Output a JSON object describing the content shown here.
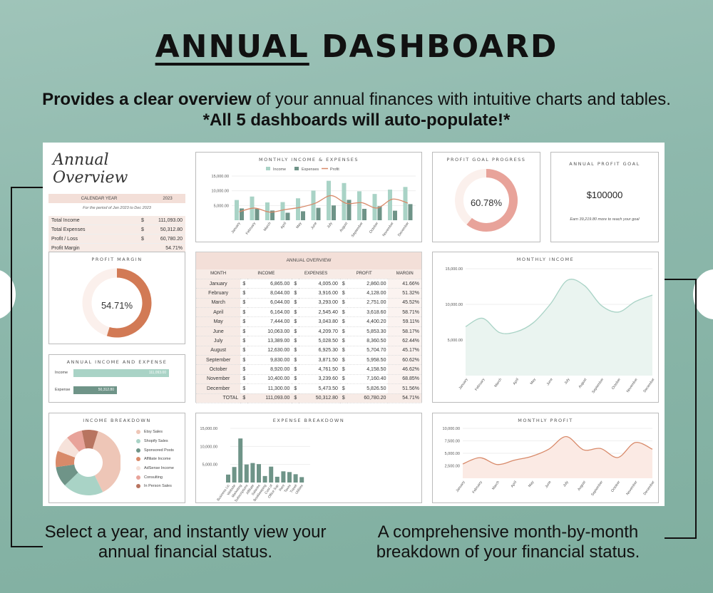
{
  "headline": {
    "part1": "ANNUAL",
    "part2": " DASHBOARD"
  },
  "subtitle": {
    "bold1": "Provides a clear overview",
    "text1": " of your annual finances with intuitive charts and tables. ",
    "bold2": "*All 5 dashboards will auto-populate!*"
  },
  "callouts": {
    "left": "Select a year, and instantly view your annual financial status.",
    "right": "A comprehensive month-by-month breakdown of your financial status."
  },
  "overview": {
    "script_title": "Annual Overview",
    "calendar_label": "CALENDAR YEAR",
    "year": "2023",
    "period": "For the period of Jan 2023 to Dec 2023",
    "rows": [
      {
        "label": "Total Income",
        "cur": "$",
        "value": "111,093.00"
      },
      {
        "label": "Total Expenses",
        "cur": "$",
        "value": "50,312.80"
      },
      {
        "label": "Profit / Loss",
        "cur": "$",
        "value": "60,780.20"
      },
      {
        "label": "Profit Margin",
        "cur": "",
        "value": "54.71%"
      }
    ]
  },
  "monthly_ie": {
    "title": "MONTHLY INCOME & EXPENSES",
    "legend": [
      "Income",
      "Expenses",
      "Profit"
    ],
    "yticks": [
      "15,000.00",
      "10,000.00",
      "5,000.00"
    ]
  },
  "profit_goal": {
    "title": "PROFIT GOAL PROGRESS",
    "value": "60.78%",
    "pct": 60.78
  },
  "annual_goal": {
    "title": "ANNUAL PROFIT GOAL",
    "value": "$100000",
    "note": "Earn 39,219.80 more to reach your goal"
  },
  "profit_margin": {
    "title": "PROFIT MARGIN",
    "value": "54.71%",
    "pct": 54.71
  },
  "income_expense": {
    "title": "ANNUAL INCOME AND EXPENSE",
    "income_label": "Income",
    "income_value": "111,093.00",
    "expense_label": "Expense",
    "expense_value": "50,312.80"
  },
  "annual_table": {
    "title": "ANNUAL OVERVIEW",
    "headers": [
      "MONTH",
      "INCOME",
      "EXPENSES",
      "PROFIT",
      "MARGIN"
    ],
    "rows": [
      [
        "January",
        "6,865.00",
        "4,005.00",
        "2,860.00",
        "41.66%"
      ],
      [
        "February",
        "8,044.00",
        "3,916.00",
        "4,128.00",
        "51.32%"
      ],
      [
        "March",
        "6,044.00",
        "3,293.00",
        "2,751.00",
        "45.52%"
      ],
      [
        "April",
        "6,164.00",
        "2,545.40",
        "3,618.60",
        "58.71%"
      ],
      [
        "May",
        "7,444.00",
        "3,043.80",
        "4,400.20",
        "59.11%"
      ],
      [
        "June",
        "10,063.00",
        "4,209.70",
        "5,853.30",
        "58.17%"
      ],
      [
        "July",
        "13,389.00",
        "5,028.50",
        "8,360.50",
        "62.44%"
      ],
      [
        "August",
        "12,630.00",
        "6,925.30",
        "5,704.70",
        "45.17%"
      ],
      [
        "September",
        "9,830.00",
        "3,871.50",
        "5,958.50",
        "60.62%"
      ],
      [
        "October",
        "8,920.00",
        "4,761.50",
        "4,158.50",
        "46.62%"
      ],
      [
        "November",
        "10,400.00",
        "3,239.60",
        "7,160.40",
        "68.85%"
      ],
      [
        "December",
        "11,300.00",
        "5,473.50",
        "5,826.50",
        "51.56%"
      ]
    ],
    "total_label": "TOTAL",
    "total": [
      "111,093.00",
      "50,312.80",
      "60,780.20",
      "54.71%"
    ],
    "currency": "$"
  },
  "monthly_income": {
    "title": "MONTHLY INCOME",
    "yticks": [
      "15,000.00",
      "10,000.00",
      "5,000.00"
    ]
  },
  "income_breakdown": {
    "title": "INCOME BREAKDOWN",
    "items": [
      {
        "label": "Etsy Sales",
        "color": "#eec6b7",
        "share": 38
      },
      {
        "label": "Shopify Sales",
        "color": "#a9d3c6",
        "share": 20
      },
      {
        "label": "Sponsored Posts",
        "color": "#6f9488",
        "share": 10
      },
      {
        "label": "Affiliate Income",
        "color": "#d88a6a",
        "share": 8
      },
      {
        "label": "AdSense Income",
        "color": "#f6e2da",
        "share": 8
      },
      {
        "label": "Consulting",
        "color": "#e8a39a",
        "share": 8
      },
      {
        "label": "In Person Sales",
        "color": "#b87460",
        "share": 8
      }
    ]
  },
  "expense_breakdown": {
    "title": "EXPENSE BREAKDOWN",
    "yticks": [
      "15,000.00",
      "10,000.00",
      "5,000.00"
    ],
    "categories": [
      "Business Lic",
      "Website",
      "Marketing",
      "Subscriptions",
      "Affiliate",
      "Salaries",
      "Bookkeeping",
      "Cost of",
      "Office Sup",
      "Rent",
      "Taxes",
      "Travel",
      "Utilities"
    ],
    "values": [
      2200,
      4300,
      12200,
      5000,
      5400,
      5100,
      1800,
      4400,
      1600,
      3100,
      2900,
      2300,
      1500
    ]
  },
  "monthly_profit": {
    "title": "MONTHLY PROFIT",
    "yticks": [
      "10,000.00",
      "7,500.00",
      "5,000.00",
      "2,500.00"
    ]
  },
  "chart_data": [
    {
      "type": "bar",
      "title": "MONTHLY INCOME & EXPENSES",
      "categories": [
        "January",
        "February",
        "March",
        "April",
        "May",
        "June",
        "July",
        "August",
        "September",
        "October",
        "November",
        "December"
      ],
      "series": [
        {
          "name": "Income",
          "values": [
            6865,
            8044,
            6044,
            6164,
            7444,
            10063,
            13389,
            12630,
            9830,
            8920,
            10400,
            11300
          ]
        },
        {
          "name": "Expenses",
          "values": [
            4005,
            3916,
            3293,
            2545.4,
            3043.8,
            4209.7,
            5028.5,
            6925.3,
            3871.5,
            4761.5,
            3239.6,
            5473.5
          ]
        },
        {
          "name": "Profit",
          "values": [
            2860,
            4128,
            2751,
            3618.6,
            4400.2,
            5853.3,
            8360.5,
            5704.7,
            5958.5,
            4158.5,
            7160.4,
            5826.5
          ]
        }
      ],
      "ylim": [
        0,
        15000
      ]
    },
    {
      "type": "area",
      "title": "MONTHLY INCOME",
      "categories": [
        "January",
        "February",
        "March",
        "April",
        "May",
        "June",
        "July",
        "August",
        "September",
        "October",
        "November",
        "December"
      ],
      "values": [
        6865,
        8044,
        6044,
        6164,
        7444,
        10063,
        13389,
        12630,
        9830,
        8920,
        10400,
        11300
      ],
      "ylim": [
        0,
        15000
      ]
    },
    {
      "type": "area",
      "title": "MONTHLY PROFIT",
      "categories": [
        "January",
        "February",
        "March",
        "April",
        "May",
        "June",
        "July",
        "August",
        "September",
        "October",
        "November",
        "December"
      ],
      "values": [
        2860,
        4128,
        2751,
        3618.6,
        4400.2,
        5853.3,
        8360.5,
        5704.7,
        5958.5,
        4158.5,
        7160.4,
        5826.5
      ],
      "ylim": [
        0,
        10000
      ]
    }
  ]
}
